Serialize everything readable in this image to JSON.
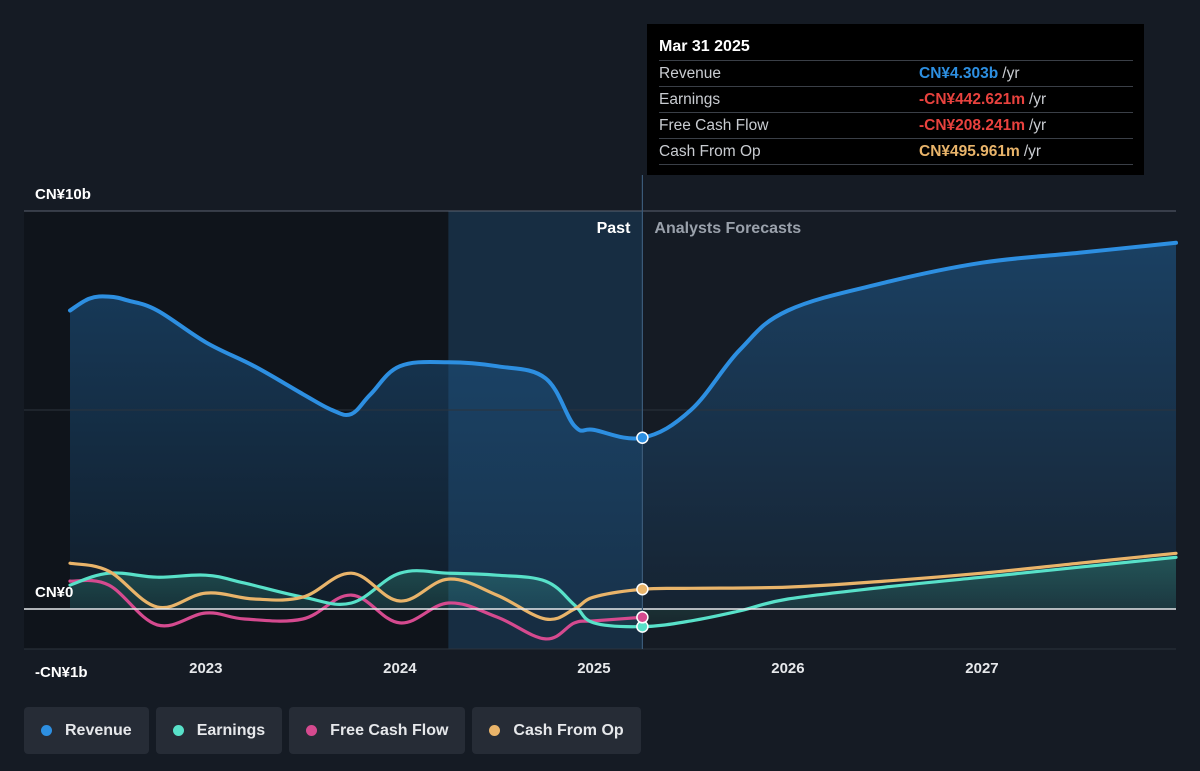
{
  "chart_data": {
    "type": "line",
    "y_unit_labels": [
      {
        "value": 10,
        "label": "CN¥10b"
      },
      {
        "value": 0,
        "label": "CN¥0"
      },
      {
        "value": -1,
        "label": "-CN¥1b"
      }
    ],
    "ylim": [
      -1,
      10
    ],
    "xlim": [
      2022.3,
      2028.0
    ],
    "x_ticks": [
      {
        "value": 2023,
        "label": "2023"
      },
      {
        "value": 2024,
        "label": "2024"
      },
      {
        "value": 2025,
        "label": "2025"
      },
      {
        "value": 2026,
        "label": "2026"
      },
      {
        "value": 2027,
        "label": "2027"
      }
    ],
    "divider_x": 2025.25,
    "highlight_start_x": 2024.25,
    "past_label": "Past",
    "forecast_label": "Analysts Forecasts",
    "series": [
      {
        "name": "Revenue",
        "color": "#2d8fe1",
        "fill": true,
        "points": [
          [
            2022.3,
            7.5
          ],
          [
            2022.4,
            7.8
          ],
          [
            2022.5,
            7.85
          ],
          [
            2022.6,
            7.75
          ],
          [
            2022.75,
            7.5
          ],
          [
            2023.0,
            6.7
          ],
          [
            2023.25,
            6.1
          ],
          [
            2023.5,
            5.4
          ],
          [
            2023.65,
            5.0
          ],
          [
            2023.75,
            4.9
          ],
          [
            2023.85,
            5.4
          ],
          [
            2024.0,
            6.1
          ],
          [
            2024.25,
            6.2
          ],
          [
            2024.5,
            6.1
          ],
          [
            2024.75,
            5.8
          ],
          [
            2024.9,
            4.6
          ],
          [
            2025.0,
            4.5
          ],
          [
            2025.25,
            4.303
          ],
          [
            2025.5,
            5.0
          ],
          [
            2025.75,
            6.5
          ],
          [
            2026.0,
            7.5
          ],
          [
            2026.5,
            8.2
          ],
          [
            2027.0,
            8.7
          ],
          [
            2027.5,
            8.95
          ],
          [
            2028.0,
            9.2
          ]
        ]
      },
      {
        "name": "Earnings",
        "color": "#58e1c9",
        "fill": true,
        "points": [
          [
            2022.3,
            0.6
          ],
          [
            2022.5,
            0.9
          ],
          [
            2022.75,
            0.8
          ],
          [
            2023.0,
            0.85
          ],
          [
            2023.2,
            0.65
          ],
          [
            2023.5,
            0.3
          ],
          [
            2023.75,
            0.15
          ],
          [
            2024.0,
            0.9
          ],
          [
            2024.25,
            0.9
          ],
          [
            2024.5,
            0.85
          ],
          [
            2024.75,
            0.7
          ],
          [
            2024.9,
            0.1
          ],
          [
            2025.0,
            -0.35
          ],
          [
            2025.25,
            -0.442621
          ],
          [
            2025.5,
            -0.3
          ],
          [
            2025.75,
            -0.05
          ],
          [
            2026.0,
            0.25
          ],
          [
            2026.5,
            0.55
          ],
          [
            2027.0,
            0.8
          ],
          [
            2027.5,
            1.05
          ],
          [
            2028.0,
            1.3
          ]
        ]
      },
      {
        "name": "Free Cash Flow",
        "color": "#d54a8f",
        "fill": false,
        "points": [
          [
            2022.3,
            0.7
          ],
          [
            2022.5,
            0.6
          ],
          [
            2022.75,
            -0.4
          ],
          [
            2023.0,
            -0.1
          ],
          [
            2023.2,
            -0.25
          ],
          [
            2023.5,
            -0.25
          ],
          [
            2023.75,
            0.35
          ],
          [
            2024.0,
            -0.35
          ],
          [
            2024.25,
            0.15
          ],
          [
            2024.5,
            -0.2
          ],
          [
            2024.75,
            -0.75
          ],
          [
            2024.9,
            -0.35
          ],
          [
            2025.0,
            -0.3
          ],
          [
            2025.25,
            -0.208241
          ]
        ]
      },
      {
        "name": "Cash From Op",
        "color": "#e9b46a",
        "fill": false,
        "points": [
          [
            2022.3,
            1.15
          ],
          [
            2022.5,
            0.95
          ],
          [
            2022.75,
            0.05
          ],
          [
            2023.0,
            0.4
          ],
          [
            2023.25,
            0.25
          ],
          [
            2023.5,
            0.3
          ],
          [
            2023.75,
            0.9
          ],
          [
            2024.0,
            0.2
          ],
          [
            2024.25,
            0.75
          ],
          [
            2024.5,
            0.35
          ],
          [
            2024.75,
            -0.25
          ],
          [
            2024.9,
            0.0
          ],
          [
            2025.0,
            0.3
          ],
          [
            2025.25,
            0.495961
          ],
          [
            2025.5,
            0.52
          ],
          [
            2026.0,
            0.55
          ],
          [
            2026.5,
            0.7
          ],
          [
            2027.0,
            0.9
          ],
          [
            2027.5,
            1.15
          ],
          [
            2028.0,
            1.4
          ]
        ]
      }
    ]
  },
  "tooltip": {
    "date": "Mar 31 2025",
    "rows": [
      {
        "label": "Revenue",
        "value": "CN¥4.303b",
        "unit": "/yr",
        "color": "#2d8fe1"
      },
      {
        "label": "Earnings",
        "value": "-CN¥442.621m",
        "unit": "/yr",
        "color": "#e8423e"
      },
      {
        "label": "Free Cash Flow",
        "value": "-CN¥208.241m",
        "unit": "/yr",
        "color": "#e8423e"
      },
      {
        "label": "Cash From Op",
        "value": "CN¥495.961m",
        "unit": "/yr",
        "color": "#e9b46a"
      }
    ]
  },
  "legend": [
    {
      "label": "Revenue",
      "color": "#2d8fe1"
    },
    {
      "label": "Earnings",
      "color": "#58e1c9"
    },
    {
      "label": "Free Cash Flow",
      "color": "#d54a8f"
    },
    {
      "label": "Cash From Op",
      "color": "#e9b46a"
    }
  ]
}
